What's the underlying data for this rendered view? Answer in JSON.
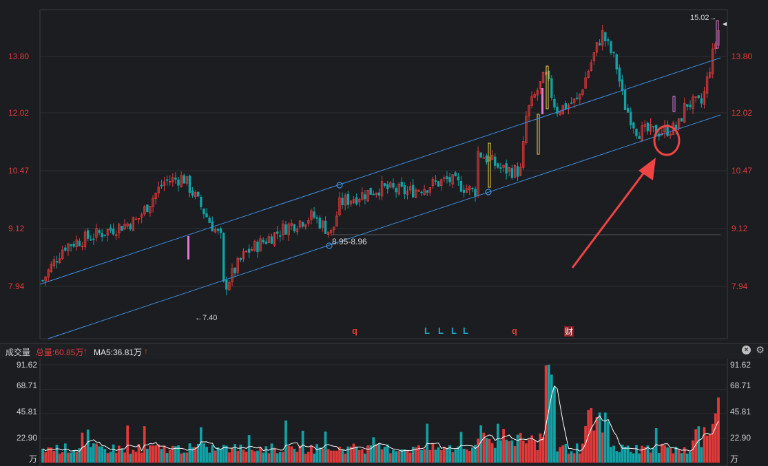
{
  "chart_data": {
    "type": "candlestick",
    "price_axis": {
      "ticks": [
        13.8,
        12.02,
        10.47,
        9.12,
        7.94
      ],
      "tick_labels": [
        "13.80",
        "12.02",
        "10.47",
        "9.12",
        "7.94"
      ]
    },
    "annotations": {
      "high_label": "15.02",
      "low_label": "7.40",
      "channel_label": "8.95-8.96",
      "markers": [
        "q",
        "L",
        "L",
        "L",
        "L",
        "q",
        "财"
      ]
    },
    "volume": {
      "title": "成交量",
      "total_label": "总量:60.85万",
      "ma5_label": "MA5:36.81万",
      "ticks": [
        91.62,
        68.71,
        45.81,
        22.9
      ],
      "tick_labels": [
        "91.62",
        "68.71",
        "45.81",
        "22.90"
      ],
      "unit_label": "万"
    },
    "colors": {
      "up": "#e03a3a",
      "down": "#12a2a6",
      "channel": "#3f8fe0",
      "arrow": "#f04444",
      "volume_ma": "#ffffff",
      "highlight_magenta": "#e27ad6",
      "highlight_yellow": "#f2d24a"
    }
  }
}
